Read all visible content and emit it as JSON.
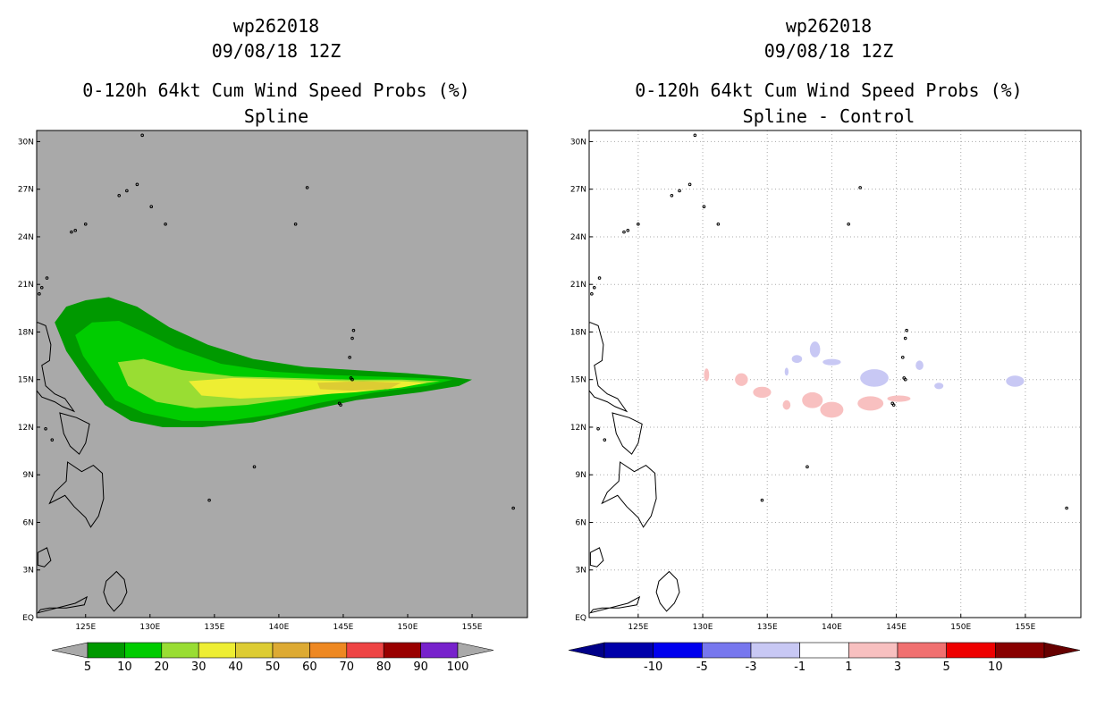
{
  "chart_data": [
    {
      "type": "heatmap",
      "storm_id": "wp262018",
      "datetime": "09/08/18 12Z",
      "title": "0-120h 64kt Cum Wind Speed Probs (%)",
      "subtitle": "Spline",
      "x_ticks": [
        "125E",
        "130E",
        "135E",
        "140E",
        "145E",
        "150E",
        "155E"
      ],
      "y_ticks": [
        "EQ",
        "3N",
        "6N",
        "9N",
        "12N",
        "15N",
        "18N",
        "21N",
        "24N",
        "27N",
        "30N"
      ],
      "xlim": [
        121.2,
        159.3
      ],
      "ylim": [
        0,
        30.7
      ],
      "grid": false,
      "background_color": "#a9a9a9",
      "colorbar": {
        "labels": [
          "5",
          "10",
          "20",
          "30",
          "40",
          "50",
          "60",
          "70",
          "80",
          "90",
          "100"
        ],
        "colors": [
          "#009900",
          "#00cc00",
          "#99dd33",
          "#eeee33",
          "#ddcc33",
          "#ddaa33",
          "#ee8822",
          "#ee4444",
          "#990000",
          "#7722cc"
        ],
        "under_color": "#a9a9a9",
        "over_color": "#a9a9a9"
      },
      "contours": [
        {
          "level": 5,
          "points": [
            [
              122.6,
              18.6
            ],
            [
              123.5,
              19.6
            ],
            [
              125.0,
              20.0
            ],
            [
              126.8,
              20.2
            ],
            [
              129.0,
              19.6
            ],
            [
              131.5,
              18.3
            ],
            [
              134.5,
              17.2
            ],
            [
              138.0,
              16.3
            ],
            [
              142.0,
              15.8
            ],
            [
              146.0,
              15.6
            ],
            [
              150.0,
              15.4
            ],
            [
              153.0,
              15.2
            ],
            [
              155.0,
              15.0
            ],
            [
              154.0,
              14.6
            ],
            [
              151.0,
              14.2
            ],
            [
              146.0,
              13.7
            ],
            [
              142.0,
              13.0
            ],
            [
              138.0,
              12.3
            ],
            [
              134.0,
              12.0
            ],
            [
              131.0,
              12.0
            ],
            [
              128.5,
              12.4
            ],
            [
              126.5,
              13.4
            ],
            [
              125.0,
              15.0
            ],
            [
              123.5,
              16.8
            ]
          ]
        },
        {
          "level": 10,
          "points": [
            [
              124.2,
              17.8
            ],
            [
              125.5,
              18.6
            ],
            [
              127.6,
              18.7
            ],
            [
              129.5,
              18.0
            ],
            [
              132.0,
              17.0
            ],
            [
              135.5,
              16.0
            ],
            [
              139.5,
              15.5
            ],
            [
              143.5,
              15.3
            ],
            [
              147.5,
              15.2
            ],
            [
              151.0,
              15.1
            ],
            [
              153.5,
              15.0
            ],
            [
              151.5,
              14.6
            ],
            [
              147.5,
              14.2
            ],
            [
              143.0,
              13.5
            ],
            [
              139.5,
              12.8
            ],
            [
              136.0,
              12.4
            ],
            [
              132.5,
              12.4
            ],
            [
              129.5,
              12.9
            ],
            [
              127.3,
              13.7
            ],
            [
              126.1,
              15.0
            ],
            [
              124.8,
              16.5
            ]
          ]
        },
        {
          "level": 20,
          "points": [
            [
              127.5,
              16.1
            ],
            [
              129.5,
              16.3
            ],
            [
              132.5,
              15.6
            ],
            [
              136.5,
              15.2
            ],
            [
              141.0,
              15.1
            ],
            [
              145.5,
              15.0
            ],
            [
              149.5,
              15.0
            ],
            [
              152.5,
              14.9
            ],
            [
              150.0,
              14.6
            ],
            [
              146.0,
              14.3
            ],
            [
              142.0,
              13.9
            ],
            [
              137.5,
              13.4
            ],
            [
              133.5,
              13.2
            ],
            [
              130.5,
              13.6
            ],
            [
              128.3,
              14.6
            ]
          ]
        },
        {
          "level": 30,
          "points": [
            [
              133.0,
              14.9
            ],
            [
              136.5,
              15.1
            ],
            [
              141.0,
              15.0
            ],
            [
              145.5,
              14.9
            ],
            [
              149.5,
              14.9
            ],
            [
              151.5,
              14.8
            ],
            [
              149.5,
              14.5
            ],
            [
              146.0,
              14.2
            ],
            [
              142.0,
              14.0
            ],
            [
              137.0,
              13.8
            ],
            [
              134.0,
              14.0
            ]
          ]
        },
        {
          "level": 40,
          "points": [
            [
              143.0,
              14.8
            ],
            [
              146.5,
              14.9
            ],
            [
              149.5,
              14.8
            ],
            [
              148.5,
              14.4
            ],
            [
              145.5,
              14.3
            ],
            [
              143.2,
              14.4
            ]
          ]
        }
      ]
    },
    {
      "type": "heatmap",
      "storm_id": "wp262018",
      "datetime": "09/08/18 12Z",
      "title": "0-120h 64kt Cum Wind Speed Probs (%)",
      "subtitle": "Spline - Control",
      "x_ticks": [
        "125E",
        "130E",
        "135E",
        "140E",
        "145E",
        "150E",
        "155E"
      ],
      "y_ticks": [
        "EQ",
        "3N",
        "6N",
        "9N",
        "12N",
        "15N",
        "18N",
        "21N",
        "24N",
        "27N",
        "30N"
      ],
      "xlim": [
        121.2,
        159.3
      ],
      "ylim": [
        0,
        30.7
      ],
      "grid": true,
      "background_color": "#ffffff",
      "colorbar": {
        "labels": [
          "-10",
          "-5",
          "-3",
          "-1",
          "1",
          "3",
          "5",
          "10"
        ],
        "colors": [
          "#0000aa",
          "#0000ee",
          "#7777ee",
          "#c8c8f4",
          "#ffffff",
          "#f8c0c0",
          "#f07070",
          "#ee0000",
          "#880000"
        ],
        "under_color": "#000088",
        "over_color": "#660000"
      },
      "blobs": [
        {
          "level": 1,
          "lon": 130.3,
          "lat": 15.3,
          "rlon": 0.2,
          "rlat": 0.4
        },
        {
          "level": 1,
          "lon": 133.0,
          "lat": 15.0,
          "rlon": 0.5,
          "rlat": 0.4
        },
        {
          "level": 1,
          "lon": 134.6,
          "lat": 14.2,
          "rlon": 0.7,
          "rlat": 0.35
        },
        {
          "level": 1,
          "lon": 136.5,
          "lat": 13.4,
          "rlon": 0.3,
          "rlat": 0.3
        },
        {
          "level": 1,
          "lon": 138.5,
          "lat": 13.7,
          "rlon": 0.8,
          "rlat": 0.5
        },
        {
          "level": 1,
          "lon": 140.0,
          "lat": 13.1,
          "rlon": 0.9,
          "rlat": 0.5
        },
        {
          "level": 1,
          "lon": 143.0,
          "lat": 13.5,
          "rlon": 1.0,
          "rlat": 0.45
        },
        {
          "level": 1,
          "lon": 145.2,
          "lat": 13.8,
          "rlon": 0.9,
          "rlat": 0.2
        },
        {
          "level": -1,
          "lon": 136.5,
          "lat": 15.5,
          "rlon": 0.15,
          "rlat": 0.25
        },
        {
          "level": -1,
          "lon": 137.3,
          "lat": 16.3,
          "rlon": 0.4,
          "rlat": 0.25
        },
        {
          "level": -1,
          "lon": 138.7,
          "lat": 16.9,
          "rlon": 0.4,
          "rlat": 0.5
        },
        {
          "level": -1,
          "lon": 140.0,
          "lat": 16.1,
          "rlon": 0.7,
          "rlat": 0.2
        },
        {
          "level": -1,
          "lon": 143.3,
          "lat": 15.1,
          "rlon": 1.1,
          "rlat": 0.55
        },
        {
          "level": -1,
          "lon": 146.8,
          "lat": 15.9,
          "rlon": 0.3,
          "rlat": 0.3
        },
        {
          "level": -1,
          "lon": 148.3,
          "lat": 14.6,
          "rlon": 0.35,
          "rlat": 0.2
        },
        {
          "level": -1,
          "lon": 154.2,
          "lat": 14.9,
          "rlon": 0.7,
          "rlat": 0.35
        }
      ]
    }
  ]
}
